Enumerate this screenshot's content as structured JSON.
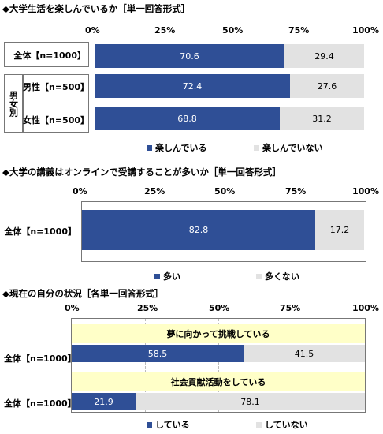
{
  "chart_data": [
    {
      "type": "bar",
      "orientation": "horizontal-stacked",
      "title": "◆大学生活を楽しんでいるか［単一回答形式］",
      "axis_ticks": [
        "0%",
        "25%",
        "50%",
        "75%",
        "100%"
      ],
      "xlim": [
        0,
        100
      ],
      "group_label": "男女別",
      "categories": [
        "全体【n=1000】",
        "男性【n=500】",
        "女性【n=500】"
      ],
      "series": [
        {
          "name": "楽しんでいる",
          "values": [
            70.6,
            72.4,
            68.8
          ],
          "labels": [
            "70.6",
            "72.4",
            "68.8"
          ]
        },
        {
          "name": "楽しんでいない",
          "values": [
            29.4,
            27.6,
            31.2
          ],
          "labels": [
            "29.4",
            "27.6",
            "31.2"
          ]
        }
      ],
      "legend_position": "bottom"
    },
    {
      "type": "bar",
      "orientation": "horizontal-stacked",
      "title": "◆大学の講義はオンラインで受講することが多いか［単一回答形式］",
      "axis_ticks": [
        "0%",
        "25%",
        "50%",
        "75%",
        "100%"
      ],
      "xlim": [
        0,
        100
      ],
      "categories": [
        "全体【n=1000】"
      ],
      "series": [
        {
          "name": "多い",
          "values": [
            82.8
          ],
          "labels": [
            "82.8"
          ]
        },
        {
          "name": "多くない",
          "values": [
            17.2
          ],
          "labels": [
            "17.2"
          ]
        }
      ],
      "legend_position": "bottom"
    },
    {
      "type": "bar",
      "orientation": "horizontal-stacked",
      "title": "◆現在の自分の状況［各単一回答形式］",
      "axis_ticks": [
        "0%",
        "25%",
        "50%",
        "75%",
        "100%"
      ],
      "xlim": [
        0,
        100
      ],
      "items": [
        "夢に向かって挑戦している",
        "社会貢献活動をしている"
      ],
      "categories": [
        "全体【n=1000】",
        "全体【n=1000】"
      ],
      "series": [
        {
          "name": "している",
          "values": [
            58.5,
            21.9
          ],
          "labels": [
            "58.5",
            "21.9"
          ]
        },
        {
          "name": "していない",
          "values": [
            41.5,
            78.1
          ],
          "labels": [
            "41.5",
            "78.1"
          ]
        }
      ],
      "legend_position": "bottom"
    }
  ],
  "colors": {
    "primary": "#2f4f96",
    "secondary": "#e2e2e2",
    "banner": "#ffffc8"
  }
}
